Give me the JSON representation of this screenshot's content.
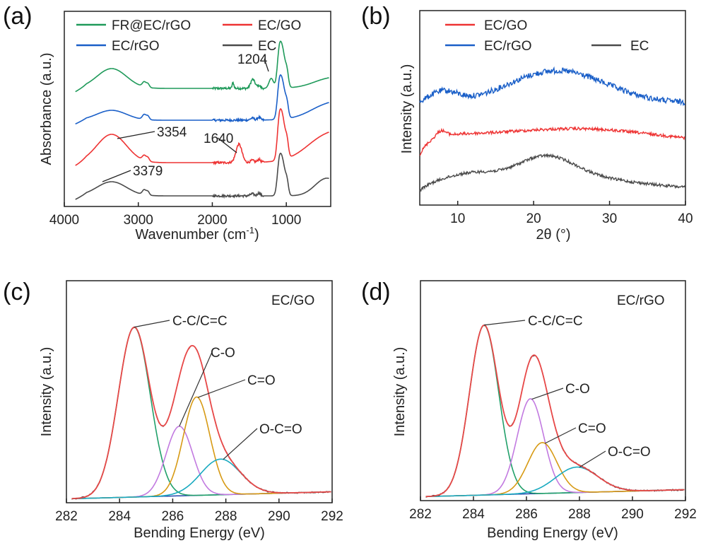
{
  "colors": {
    "green": "#1f9a5a",
    "red": "#ee3333",
    "blue": "#1a5fc8",
    "gray": "#4a4a4a",
    "purple": "#c27ae0",
    "orange": "#d79a14",
    "cyan": "#19aac0",
    "baseline": "#2244aa",
    "envelope": "#e84848",
    "comp_green": "#21a06a"
  },
  "chart_data": [
    {
      "panel": "(a)",
      "type": "line",
      "xlabel": "Wavenumber (cm",
      "xlabel_sup": "-1",
      "xlabel_close": ")",
      "ylabel": "Absorbance (a.u.)",
      "xlim": [
        4000,
        400
      ],
      "xticks": [
        "4000",
        "3000",
        "2000",
        "1000"
      ],
      "xtick_values": [
        4000,
        3000,
        2000,
        1000
      ],
      "legend": [
        "FR@EC/rGO",
        "EC/GO",
        "EC/rGO",
        "EC"
      ],
      "series": [
        {
          "name": "FR@EC/rGO",
          "color_key": "green",
          "offset": 3.0
        },
        {
          "name": "EC/rGO",
          "color_key": "blue",
          "offset": 2.0
        },
        {
          "name": "EC/GO",
          "color_key": "red",
          "offset": 1.0
        },
        {
          "name": "EC",
          "color_key": "gray",
          "offset": 0.0
        }
      ],
      "annotations": [
        {
          "text": "1204",
          "x": 1204,
          "series": "FR@EC/rGO"
        },
        {
          "text": "3354",
          "x": 3354,
          "series": "EC/GO"
        },
        {
          "text": "1640",
          "x": 1640,
          "series": "EC/GO"
        },
        {
          "text": "3379",
          "x": 3379,
          "series": "EC"
        }
      ]
    },
    {
      "panel": "(b)",
      "type": "line",
      "xlabel": "2θ (°)",
      "ylabel": "Intensity (a.u.)",
      "xlim": [
        5,
        40
      ],
      "xticks": [
        "10",
        "20",
        "30",
        "40"
      ],
      "xtick_values": [
        10,
        20,
        30,
        40
      ],
      "legend": [
        "EC/GO",
        "EC/rGO",
        "EC"
      ],
      "series": [
        {
          "name": "EC/rGO",
          "color_key": "blue",
          "broad_peak_2theta": 23
        },
        {
          "name": "EC/GO",
          "color_key": "red",
          "broad_peak_2theta": 27,
          "low_angle_peak_2theta": 7.8
        },
        {
          "name": "EC",
          "color_key": "gray",
          "broad_peak_2theta": 21.5
        }
      ]
    },
    {
      "panel": "(c)",
      "type": "line",
      "title": "EC/GO",
      "xlabel": "Bending Energy (eV)",
      "ylabel": "Intensity (a.u.)",
      "xlim": [
        282,
        292
      ],
      "xticks": [
        "282",
        "284",
        "286",
        "288",
        "290",
        "292"
      ],
      "xtick_values": [
        282,
        284,
        286,
        288,
        290,
        292
      ],
      "components": [
        {
          "label": "C-C/C=C",
          "center": 284.55,
          "height": 1.0,
          "sigma": 0.6,
          "color_key": "comp_green"
        },
        {
          "label": "C-O",
          "center": 286.25,
          "height": 0.41,
          "sigma": 0.5,
          "color_key": "purple"
        },
        {
          "label": "C=O",
          "center": 286.9,
          "height": 0.58,
          "sigma": 0.5,
          "color_key": "orange"
        },
        {
          "label": "O-C=O",
          "center": 287.8,
          "height": 0.21,
          "sigma": 0.75,
          "color_key": "cyan"
        }
      ]
    },
    {
      "panel": "(d)",
      "type": "line",
      "title": "EC/rGO",
      "xlabel": "Bending Energy (eV)",
      "ylabel": "Intensity (a.u.)",
      "xlim": [
        282,
        292
      ],
      "xticks": [
        "282",
        "284",
        "286",
        "288",
        "290",
        "292"
      ],
      "xtick_values": [
        282,
        284,
        286,
        288,
        290,
        292
      ],
      "components": [
        {
          "label": "C-C/C=C",
          "center": 284.4,
          "height": 1.0,
          "sigma": 0.55,
          "color_key": "comp_green"
        },
        {
          "label": "C-O",
          "center": 286.15,
          "height": 0.56,
          "sigma": 0.5,
          "color_key": "purple"
        },
        {
          "label": "C=O",
          "center": 286.6,
          "height": 0.3,
          "sigma": 0.55,
          "color_key": "orange"
        },
        {
          "label": "O-C=O",
          "center": 287.9,
          "height": 0.15,
          "sigma": 0.8,
          "color_key": "cyan"
        }
      ]
    }
  ]
}
